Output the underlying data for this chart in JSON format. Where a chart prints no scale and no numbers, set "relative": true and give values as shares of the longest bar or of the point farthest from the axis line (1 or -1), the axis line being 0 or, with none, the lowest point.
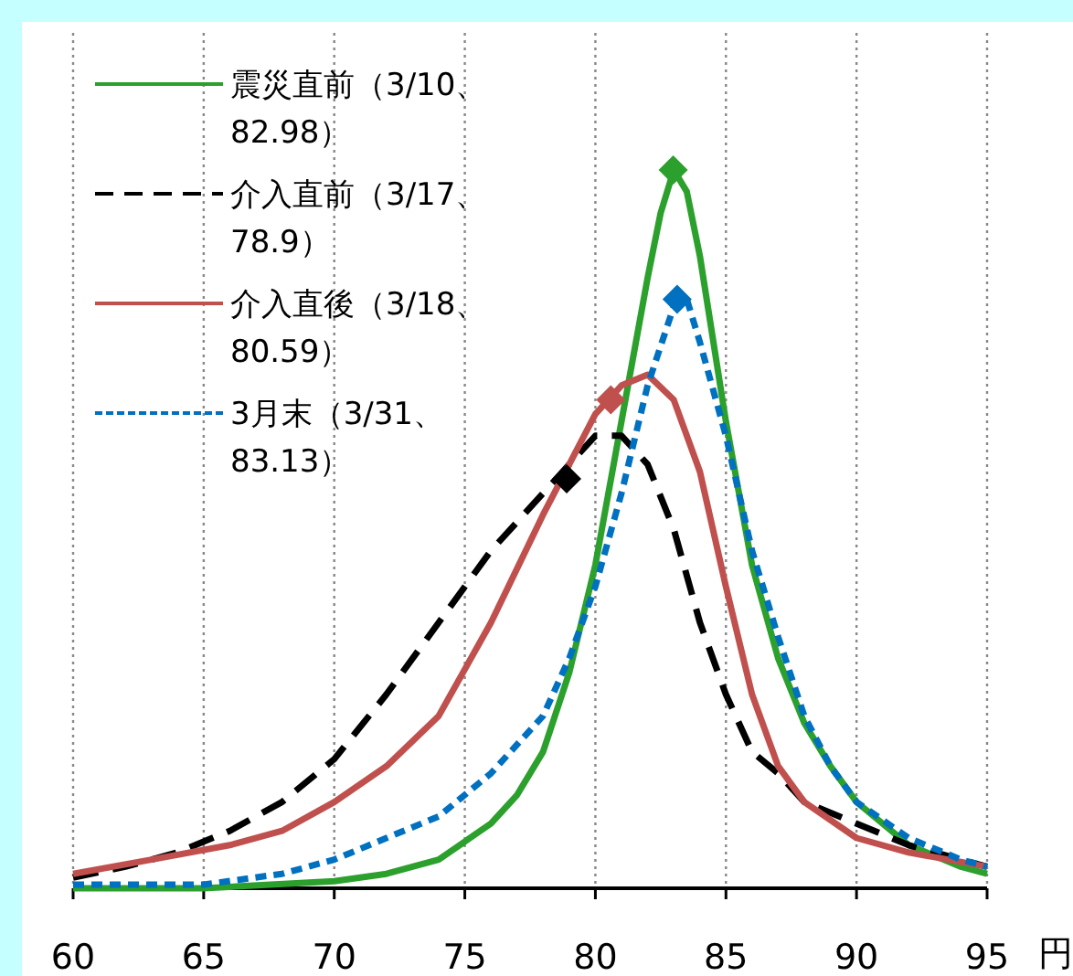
{
  "chart_data": {
    "type": "line",
    "relative": true,
    "xlabel": "円",
    "xlim": [
      60,
      95
    ],
    "xticks": [
      60,
      65,
      70,
      75,
      80,
      85,
      90,
      95
    ],
    "grid": "x",
    "legend": "top left",
    "tick_labels": "x",
    "series": [
      {
        "name": "震災直前（3/10、82.98）",
        "color": "#2ca02c",
        "line_style": "solid",
        "marker": "none",
        "x": [
          60,
          65,
          70,
          72,
          74,
          76,
          77,
          78,
          79,
          80,
          81,
          82,
          82.5,
          83,
          83.5,
          84,
          85,
          86,
          87,
          88,
          89,
          90,
          92,
          94,
          95
        ],
        "values": [
          0,
          0,
          0.01,
          0.02,
          0.04,
          0.09,
          0.13,
          0.19,
          0.3,
          0.45,
          0.65,
          0.85,
          0.94,
          1,
          0.97,
          0.88,
          0.65,
          0.45,
          0.32,
          0.23,
          0.17,
          0.12,
          0.06,
          0.03,
          0.02
        ]
      },
      {
        "name": "介入直前（3/17、78.9）",
        "color": "#000000",
        "line_style": "dashed",
        "marker": "none",
        "x": [
          60,
          62,
          64,
          66,
          68,
          70,
          72,
          74,
          76,
          78,
          79,
          80,
          81,
          82,
          83,
          84,
          85,
          86,
          87,
          88,
          90,
          92,
          95
        ],
        "values": [
          0.015,
          0.03,
          0.05,
          0.08,
          0.12,
          0.18,
          0.27,
          0.37,
          0.47,
          0.55,
          0.59,
          0.63,
          0.63,
          0.59,
          0.5,
          0.37,
          0.27,
          0.19,
          0.16,
          0.12,
          0.09,
          0.06,
          0.03
        ]
      },
      {
        "name": "介入直後（3/18、80.59）",
        "color": "#c0504d",
        "line_style": "solid",
        "marker": "none",
        "x": [
          60,
          63,
          66,
          68,
          70,
          72,
          74,
          76,
          78,
          80,
          81,
          82,
          83,
          84,
          85,
          86,
          87,
          88,
          90,
          92,
          95
        ],
        "values": [
          0.02,
          0.04,
          0.06,
          0.08,
          0.12,
          0.17,
          0.24,
          0.37,
          0.52,
          0.66,
          0.7,
          0.715,
          0.68,
          0.58,
          0.42,
          0.27,
          0.17,
          0.12,
          0.07,
          0.05,
          0.03
        ]
      },
      {
        "name": "3月末（3/31、83.13）",
        "color": "#0070c0",
        "line_style": "dotted",
        "marker": "none",
        "x": [
          60,
          65,
          68,
          70,
          72,
          74,
          76,
          78,
          79,
          80,
          81,
          82,
          83,
          83.5,
          84,
          85,
          86,
          87,
          88,
          89,
          90,
          92,
          94,
          95
        ],
        "values": [
          0.005,
          0.005,
          0.02,
          0.04,
          0.07,
          0.1,
          0.16,
          0.24,
          0.32,
          0.42,
          0.55,
          0.7,
          0.81,
          0.82,
          0.76,
          0.63,
          0.47,
          0.35,
          0.24,
          0.17,
          0.12,
          0.07,
          0.04,
          0.03
        ]
      },
      {
        "type": "scatter",
        "color": "#2ca02c",
        "marker": "diamond",
        "x": [
          82.98
        ],
        "values": [
          1
        ]
      },
      {
        "type": "scatter",
        "color": "#000000",
        "marker": "diamond",
        "x": [
          78.9
        ],
        "values": [
          0.57
        ]
      },
      {
        "type": "scatter",
        "color": "#c0504d",
        "marker": "diamond",
        "x": [
          80.59
        ],
        "values": [
          0.68
        ]
      },
      {
        "type": "scatter",
        "color": "#0070c0",
        "marker": "diamond",
        "x": [
          83.13
        ],
        "values": [
          0.82
        ]
      }
    ]
  }
}
